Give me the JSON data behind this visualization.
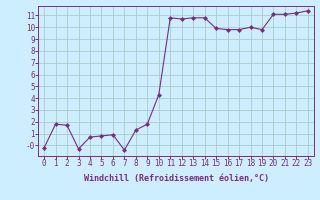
{
  "x": [
    0,
    1,
    2,
    3,
    4,
    5,
    6,
    7,
    8,
    9,
    10,
    11,
    12,
    13,
    14,
    15,
    16,
    17,
    18,
    19,
    20,
    21,
    22,
    23
  ],
  "y": [
    -0.2,
    1.8,
    1.7,
    -0.3,
    0.7,
    0.8,
    0.9,
    -0.4,
    1.3,
    1.8,
    4.3,
    10.8,
    10.7,
    10.8,
    10.8,
    9.9,
    9.8,
    9.8,
    10.0,
    9.8,
    11.1,
    11.1,
    11.2,
    11.4
  ],
  "line_color": "#7b2b7b",
  "marker": "D",
  "marker_size": 2.0,
  "bg_color": "#cceeff",
  "grid_color": "#aacccc",
  "xlabel": "Windchill (Refroidissement éolien,°C)",
  "ylabel_ticks": [
    0,
    1,
    2,
    3,
    4,
    5,
    6,
    7,
    8,
    9,
    10,
    11
  ],
  "ylabel_labels": [
    "-0",
    "1",
    "2",
    "3",
    "4",
    "5",
    "6",
    "7",
    "8",
    "9",
    "10",
    "11"
  ],
  "xlim": [
    -0.5,
    23.5
  ],
  "ylim": [
    -0.9,
    11.8
  ],
  "tick_color": "#7b2b7b",
  "label_color": "#7b2b7b",
  "font_size": 5.5,
  "xlabel_font_size": 6.0
}
